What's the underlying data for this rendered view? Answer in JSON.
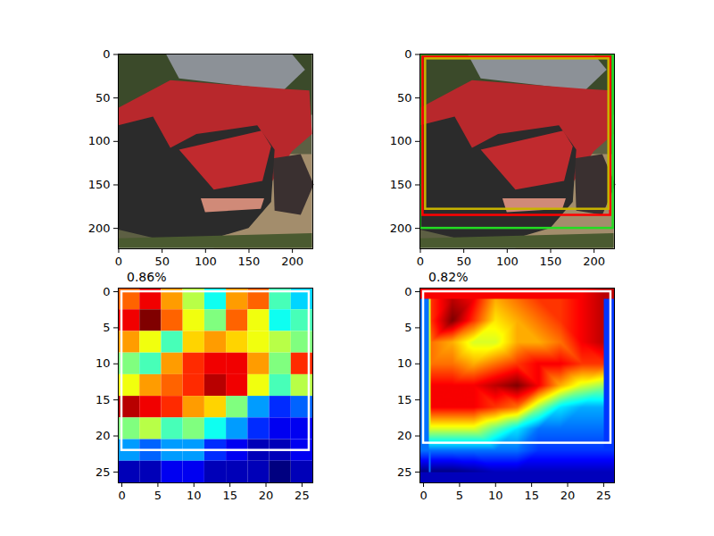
{
  "chart_data": [
    {
      "type": "image",
      "xlim": [
        -0.5,
        223.5
      ],
      "ylim": [
        223.5,
        -0.5
      ],
      "xticks": [
        0,
        50,
        100,
        150,
        200
      ],
      "yticks": [
        0,
        50,
        100,
        150,
        200
      ]
    },
    {
      "type": "image",
      "xlim": [
        -0.5,
        223.5
      ],
      "ylim": [
        223.5,
        -0.5
      ],
      "xticks": [
        0,
        50,
        100,
        150,
        200
      ],
      "yticks": [
        0,
        50,
        100,
        150,
        200
      ],
      "boxes": [
        {
          "color": "#22dd22",
          "x": [
            0,
            222
          ],
          "y": [
            0,
            200
          ]
        },
        {
          "color": "#ff0000",
          "x": [
            3,
            219
          ],
          "y": [
            3,
            185
          ]
        },
        {
          "color": "#c8b400",
          "x": [
            6,
            217
          ],
          "y": [
            5,
            178
          ]
        }
      ]
    },
    {
      "type": "heatmap",
      "title": "0.86%",
      "xlim": [
        -0.5,
        26.5
      ],
      "ylim": [
        26.5,
        -0.5
      ],
      "xticks": [
        0,
        5,
        10,
        15,
        20,
        25
      ],
      "yticks": [
        0,
        5,
        10,
        15,
        20,
        25
      ],
      "x": [
        1,
        4,
        7,
        10,
        13,
        16,
        19,
        22,
        25
      ],
      "y": [
        1,
        4,
        7,
        10,
        13,
        16,
        19,
        22,
        25
      ],
      "values": [
        [
          0.75,
          0.85,
          0.7,
          0.55,
          0.4,
          0.7,
          0.75,
          0.45,
          0.35
        ],
        [
          0.85,
          0.95,
          0.75,
          0.6,
          0.5,
          0.75,
          0.6,
          0.4,
          0.45
        ],
        [
          0.7,
          0.6,
          0.45,
          0.65,
          0.7,
          0.65,
          0.6,
          0.55,
          0.5
        ],
        [
          0.5,
          0.45,
          0.7,
          0.8,
          0.85,
          0.85,
          0.7,
          0.5,
          0.8
        ],
        [
          0.6,
          0.7,
          0.75,
          0.8,
          0.9,
          0.85,
          0.6,
          0.45,
          0.55
        ],
        [
          0.9,
          0.85,
          0.8,
          0.7,
          0.65,
          0.5,
          0.3,
          0.2,
          0.25
        ],
        [
          0.5,
          0.55,
          0.45,
          0.5,
          0.4,
          0.3,
          0.2,
          0.15,
          0.15
        ],
        [
          0.3,
          0.25,
          0.3,
          0.3,
          0.2,
          0.15,
          0.1,
          0.1,
          0.15
        ],
        [
          0.1,
          0.1,
          0.15,
          0.15,
          0.1,
          0.1,
          0.1,
          0.05,
          0.1
        ]
      ],
      "boxes": [
        {
          "color": "#ffffff",
          "x": [
            0,
            26
          ],
          "y": [
            0,
            22
          ]
        }
      ]
    },
    {
      "type": "heatmap",
      "title": "0.82%",
      "xlim": [
        -0.5,
        26.5
      ],
      "ylim": [
        26.5,
        -0.5
      ],
      "xticks": [
        0,
        5,
        10,
        15,
        20,
        25
      ],
      "yticks": [
        0,
        5,
        10,
        15,
        20,
        25
      ],
      "x": [
        1,
        4,
        7,
        10,
        13,
        16,
        19,
        22,
        25
      ],
      "y": [
        1,
        4,
        7,
        10,
        13,
        16,
        19,
        22,
        25
      ],
      "values": [
        [
          0.8,
          0.9,
          0.85,
          0.7,
          0.75,
          0.8,
          0.8,
          0.85,
          0.9
        ],
        [
          0.8,
          0.95,
          0.8,
          0.65,
          0.7,
          0.75,
          0.8,
          0.85,
          0.9
        ],
        [
          0.75,
          0.7,
          0.6,
          0.6,
          0.7,
          0.7,
          0.75,
          0.85,
          0.9
        ],
        [
          0.75,
          0.75,
          0.7,
          0.75,
          0.8,
          0.85,
          0.85,
          0.8,
          0.8
        ],
        [
          0.85,
          0.85,
          0.85,
          0.9,
          0.95,
          0.85,
          0.7,
          0.6,
          0.55
        ],
        [
          0.85,
          0.85,
          0.85,
          0.8,
          0.75,
          0.55,
          0.4,
          0.35,
          0.35
        ],
        [
          0.6,
          0.6,
          0.6,
          0.5,
          0.4,
          0.3,
          0.3,
          0.3,
          0.3
        ],
        [
          0.3,
          0.3,
          0.3,
          0.3,
          0.3,
          0.25,
          0.25,
          0.25,
          0.25
        ],
        [
          0.1,
          0.1,
          0.12,
          0.15,
          0.15,
          0.15,
          0.15,
          0.15,
          0.15
        ]
      ],
      "boxes": [
        {
          "color": "#ffffff",
          "x": [
            0,
            26
          ],
          "y": [
            0,
            21
          ]
        }
      ]
    }
  ]
}
